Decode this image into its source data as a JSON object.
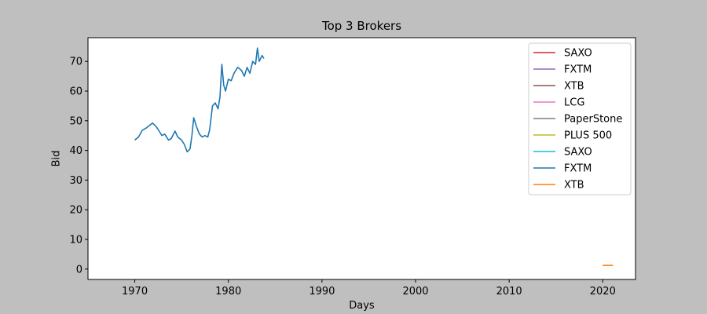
{
  "chart_data": {
    "type": "line",
    "title": "Top 3 Brokers",
    "xlabel": "Days",
    "ylabel": "Bid",
    "xlim": [
      1965,
      2023.5
    ],
    "ylim": [
      -3.5,
      78
    ],
    "xticks": [
      1970,
      1980,
      1990,
      2000,
      2010,
      2020
    ],
    "yticks": [
      0,
      10,
      20,
      30,
      40,
      50,
      60,
      70
    ],
    "grid": false,
    "legend_position": "top-right",
    "series": [
      {
        "name": "SAXO",
        "color": "#d62728",
        "x": [],
        "y": []
      },
      {
        "name": "FXTM",
        "color": "#9467bd",
        "x": [],
        "y": []
      },
      {
        "name": "XTB",
        "color": "#8c564b",
        "x": [],
        "y": []
      },
      {
        "name": "LCG",
        "color": "#e377c2",
        "x": [],
        "y": []
      },
      {
        "name": "PaperStone",
        "color": "#7f7f7f",
        "x": [],
        "y": []
      },
      {
        "name": "PLUS 500",
        "color": "#bcbd22",
        "x": [],
        "y": []
      },
      {
        "name": "SAXO",
        "color": "#17becf",
        "x": [],
        "y": []
      },
      {
        "name": "FXTM",
        "color": "#1f77b4",
        "x": [
          1970.0,
          1970.4,
          1970.8,
          1971.2,
          1971.6,
          1971.9,
          1972.3,
          1972.6,
          1972.9,
          1973.2,
          1973.6,
          1973.9,
          1974.3,
          1974.6,
          1975.0,
          1975.3,
          1975.6,
          1975.9,
          1976.1,
          1976.3,
          1976.6,
          1976.9,
          1977.2,
          1977.5,
          1977.8,
          1978.0,
          1978.3,
          1978.6,
          1978.9,
          1979.1,
          1979.3,
          1979.5,
          1979.7,
          1980.0,
          1980.3,
          1980.6,
          1981.0,
          1981.4,
          1981.7,
          1982.0,
          1982.3,
          1982.6,
          1982.9,
          1983.1,
          1983.3,
          1983.6,
          1983.8
        ],
        "y": [
          43.5,
          44.5,
          46.8,
          47.5,
          48.5,
          49.2,
          48.0,
          46.5,
          45.0,
          45.5,
          43.5,
          44.0,
          46.5,
          44.5,
          43.5,
          42.0,
          39.5,
          40.5,
          45.0,
          51.0,
          48.0,
          45.5,
          44.5,
          45.0,
          44.5,
          47.0,
          55.0,
          56.0,
          54.0,
          58.0,
          69.0,
          62.0,
          60.0,
          64.0,
          63.5,
          66.0,
          68.0,
          67.0,
          65.0,
          68.0,
          66.0,
          70.0,
          69.0,
          74.5,
          70.0,
          72.0,
          71.0
        ]
      },
      {
        "name": "XTB",
        "color": "#ff7f0e",
        "x": [
          2020.0,
          2020.3,
          2020.6,
          2020.9,
          2021.1
        ],
        "y": [
          1.2,
          1.3,
          1.2,
          1.3,
          1.2
        ]
      }
    ]
  }
}
